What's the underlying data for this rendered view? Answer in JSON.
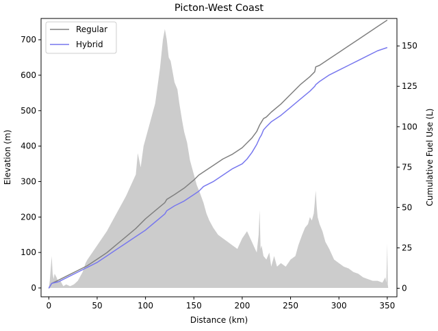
{
  "chart_data": {
    "type": "line",
    "title": "Picton-West Coast",
    "xlabel": "Distance (km)",
    "ylabel": "Elevation (m)",
    "y2label": "Cumulative Fuel Use (L)",
    "xlim": [
      -8,
      360
    ],
    "ylim": [
      -25,
      760
    ],
    "y2lim": [
      -5.3,
      167
    ],
    "xticks": [
      0,
      50,
      100,
      150,
      200,
      250,
      300,
      350
    ],
    "yticks": [
      0,
      100,
      200,
      300,
      400,
      500,
      600,
      700
    ],
    "y2ticks": [
      0,
      25,
      50,
      75,
      100,
      125,
      150
    ],
    "legend_position": "upper-left",
    "grid": false,
    "elevation_profile": {
      "color": "#cccccc",
      "x": [
        0,
        1,
        3,
        4,
        5,
        6,
        8,
        10,
        12,
        15,
        18,
        22,
        26,
        30,
        35,
        38,
        40,
        45,
        50,
        55,
        60,
        65,
        70,
        75,
        80,
        85,
        90,
        92,
        95,
        98,
        100,
        102,
        105,
        108,
        110,
        112,
        115,
        118,
        120,
        122,
        124,
        126,
        128,
        130,
        133,
        135,
        138,
        140,
        143,
        146,
        150,
        153,
        156,
        160,
        163,
        166,
        170,
        175,
        180,
        185,
        190,
        195,
        200,
        205,
        210,
        215,
        217,
        218,
        219,
        220,
        222,
        225,
        228,
        230,
        233,
        236,
        240,
        245,
        250,
        255,
        258,
        262,
        265,
        268,
        270,
        272,
        274,
        275,
        276,
        277,
        278,
        280,
        283,
        286,
        290,
        295,
        300,
        305,
        310,
        315,
        320,
        325,
        330,
        335,
        340,
        345,
        348,
        349,
        350,
        350.5,
        351
      ],
      "values": [
        0,
        20,
        90,
        40,
        25,
        40,
        30,
        15,
        20,
        5,
        10,
        5,
        10,
        20,
        45,
        70,
        80,
        100,
        120,
        140,
        160,
        185,
        210,
        235,
        260,
        290,
        320,
        380,
        340,
        400,
        420,
        440,
        470,
        500,
        520,
        560,
        620,
        700,
        730,
        700,
        650,
        640,
        610,
        580,
        560,
        520,
        470,
        440,
        410,
        360,
        320,
        290,
        270,
        240,
        210,
        190,
        170,
        150,
        140,
        130,
        120,
        110,
        140,
        160,
        130,
        100,
        150,
        220,
        110,
        120,
        90,
        80,
        100,
        60,
        90,
        60,
        70,
        60,
        80,
        90,
        120,
        150,
        170,
        180,
        200,
        190,
        210,
        240,
        275,
        230,
        200,
        180,
        160,
        130,
        110,
        80,
        70,
        60,
        55,
        45,
        40,
        30,
        25,
        20,
        20,
        15,
        30,
        15,
        125,
        10,
        0
      ]
    },
    "x": [
      0,
      3,
      10,
      20,
      30,
      40,
      50,
      60,
      70,
      80,
      90,
      100,
      110,
      120,
      122,
      130,
      140,
      150,
      155,
      160,
      170,
      180,
      190,
      200,
      205,
      210,
      215,
      218,
      220,
      222,
      225,
      230,
      240,
      250,
      260,
      270,
      275,
      276,
      280,
      290,
      300,
      310,
      320,
      330,
      340,
      350
    ],
    "series": [
      {
        "name": "Regular",
        "color": "#7f7f7f",
        "values": [
          0,
          3,
          5,
          8,
          11,
          14,
          18,
          22,
          27,
          32,
          37,
          43,
          48,
          53,
          55,
          58,
          62,
          67,
          70,
          72,
          76,
          80,
          83,
          87,
          90,
          93,
          97,
          101,
          103,
          105,
          106,
          109,
          114,
          120,
          126,
          131,
          134,
          137,
          138,
          142,
          146,
          150,
          154,
          158,
          162,
          166
        ]
      },
      {
        "name": "Hybrid",
        "color": "#7777ee",
        "values": [
          0,
          3,
          4,
          7,
          10,
          13,
          16,
          20,
          24,
          28,
          32,
          36,
          41,
          46,
          48,
          51,
          54,
          58,
          60,
          63,
          66,
          70,
          74,
          77,
          80,
          84,
          89,
          93,
          95,
          98,
          100,
          103,
          107,
          112,
          117,
          122,
          125,
          126,
          128,
          132,
          135,
          138,
          141,
          144,
          147,
          149
        ]
      }
    ]
  }
}
